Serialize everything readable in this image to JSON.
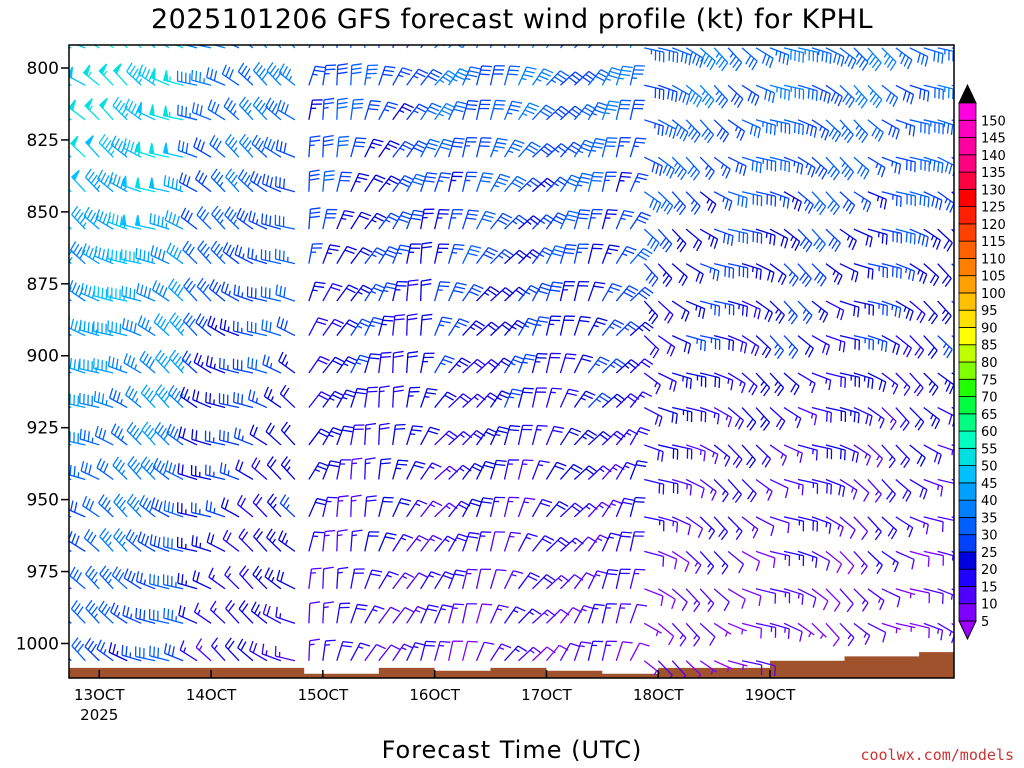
{
  "chart_data": {
    "type": "wind-barb-profile",
    "title": "2025101206 GFS forecast wind profile (kt) for KPHL",
    "xlabel": "Forecast Time (UTC)",
    "credit": "coolwx.com/models",
    "y_levels_hPa": [
      800,
      825,
      850,
      875,
      900,
      925,
      950,
      975,
      1000
    ],
    "y_tick_labels": [
      "800",
      "825",
      "850",
      "875",
      "900",
      "925",
      "950",
      "975",
      "1000"
    ],
    "ylim": [
      792,
      1012
    ],
    "xlim_hours": [
      -6.5,
      183.5
    ],
    "x_ticks": [
      {
        "hour": 0,
        "label": "13OCT",
        "sublabel": "2025"
      },
      {
        "hour": 24,
        "label": "14OCT"
      },
      {
        "hour": 48,
        "label": "15OCT"
      },
      {
        "hour": 72,
        "label": "16OCT"
      },
      {
        "hour": 96,
        "label": "17OCT"
      },
      {
        "hour": 120,
        "label": "18OCT"
      },
      {
        "hour": 144,
        "label": "19OCT"
      }
    ],
    "colorbar": {
      "levels": [
        5,
        10,
        15,
        20,
        25,
        30,
        35,
        40,
        45,
        50,
        55,
        60,
        65,
        70,
        75,
        80,
        85,
        90,
        95,
        100,
        105,
        110,
        115,
        120,
        125,
        130,
        135,
        140,
        145,
        150
      ],
      "labels": [
        "5",
        "10",
        "15",
        "20",
        "25",
        "30",
        "35",
        "40",
        "45",
        "50",
        "55",
        "60",
        "65",
        "70",
        "75",
        "80",
        "85",
        "90",
        "95",
        "100",
        "105",
        "110",
        "115",
        "120",
        "125",
        "130",
        "135",
        "140",
        "145",
        "150"
      ],
      "colors": [
        "#8000ff",
        "#5000ff",
        "#2000ff",
        "#0000e0",
        "#0040ff",
        "#0060ff",
        "#0080ff",
        "#00a0ff",
        "#00c0ff",
        "#00e0e0",
        "#00ffc0",
        "#00ff80",
        "#00ff40",
        "#20ff00",
        "#80ff00",
        "#c0ff00",
        "#ffff00",
        "#ffe000",
        "#ffc000",
        "#ffa000",
        "#ff8000",
        "#ff6000",
        "#ff4000",
        "#ff2000",
        "#ff0000",
        "#ff0040",
        "#ff0080",
        "#ff00a0",
        "#ff00c0",
        "#ff00e0"
      ],
      "under_color": "#a000ff",
      "over_color": "#000000"
    },
    "terrain_color": "#a0522d",
    "surface_pressure_hPa": [
      {
        "hour": -6.5,
        "p": 1008.5
      },
      {
        "hour": 30,
        "p": 1008.5
      },
      {
        "hour": 44,
        "p": 1010.5
      },
      {
        "hour": 60,
        "p": 1008.5
      },
      {
        "hour": 72,
        "p": 1009.5
      },
      {
        "hour": 84,
        "p": 1008.5
      },
      {
        "hour": 96,
        "p": 1009.5
      },
      {
        "hour": 108,
        "p": 1010.5
      },
      {
        "hour": 120,
        "p": 1008.5
      },
      {
        "hour": 132,
        "p": 1008.5
      },
      {
        "hour": 144,
        "p": 1006
      },
      {
        "hour": 160,
        "p": 1004.5
      },
      {
        "hour": 176,
        "p": 1003
      },
      {
        "hour": 183.5,
        "p": 1001
      }
    ],
    "wind_regimes": [
      {
        "start_hour": -6,
        "end_hour": 18,
        "dir_deg": 300,
        "speed_low_kt": 28,
        "speed_high_kt": 52
      },
      {
        "start_hour": 21,
        "end_hour": 42,
        "dir_deg": 300,
        "speed_low_kt": 18,
        "speed_high_kt": 36
      },
      {
        "start_hour": 45,
        "end_hour": 69,
        "dir_deg": 20,
        "speed_low_kt": 14,
        "speed_high_kt": 30
      },
      {
        "start_hour": 72,
        "end_hour": 114,
        "dir_deg": 30,
        "speed_low_kt": 12,
        "speed_high_kt": 34
      },
      {
        "start_hour": 117,
        "end_hour": 183,
        "dir_deg": 120,
        "speed_low_kt": 8,
        "speed_high_kt": 34
      }
    ],
    "time_step_hours": 3,
    "barb_levels_hPa": [
      793,
      806,
      818,
      831,
      843,
      856,
      868,
      881,
      893,
      906,
      918,
      931,
      943,
      956,
      968,
      981,
      993,
      1006
    ]
  }
}
